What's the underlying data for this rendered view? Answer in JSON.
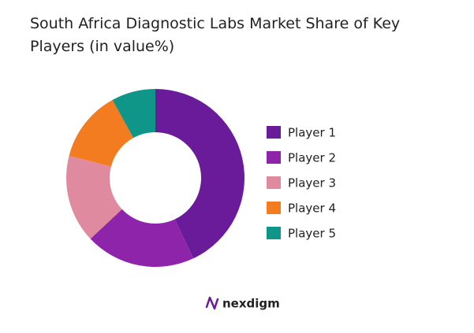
{
  "chart_data": {
    "type": "donut",
    "title": "South Africa Diagnostic Labs Market Share of Key Players (in value%)",
    "categories": [
      "Player 1",
      "Player 2",
      "Player 3",
      "Player 4",
      "Player 5"
    ],
    "values": [
      43,
      20,
      16,
      13,
      8
    ],
    "colors": [
      "#6a1b9a",
      "#8e24aa",
      "#e08aa0",
      "#f47c20",
      "#0f9688"
    ],
    "legend": "right"
  },
  "footer": {
    "brand": "nexdigm"
  }
}
